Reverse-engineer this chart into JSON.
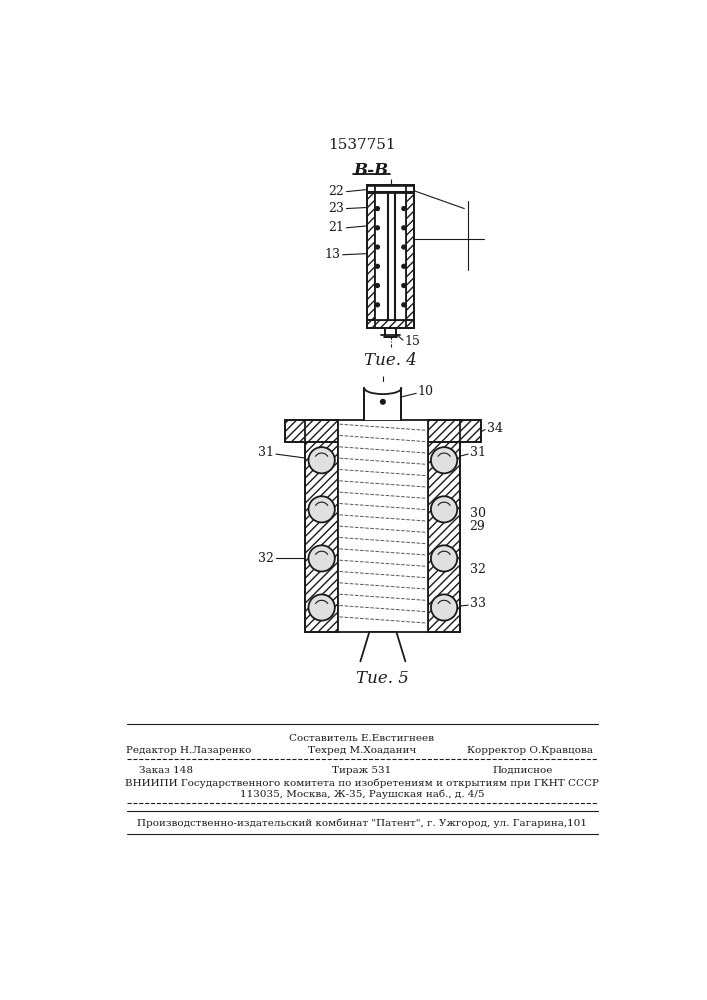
{
  "patent_number": "1537751",
  "bg_color": "#ffffff",
  "line_color": "#1a1a1a",
  "fig4_label": "Τие. 4",
  "fig5_label": "Τие. 5",
  "view_label": "B-B"
}
